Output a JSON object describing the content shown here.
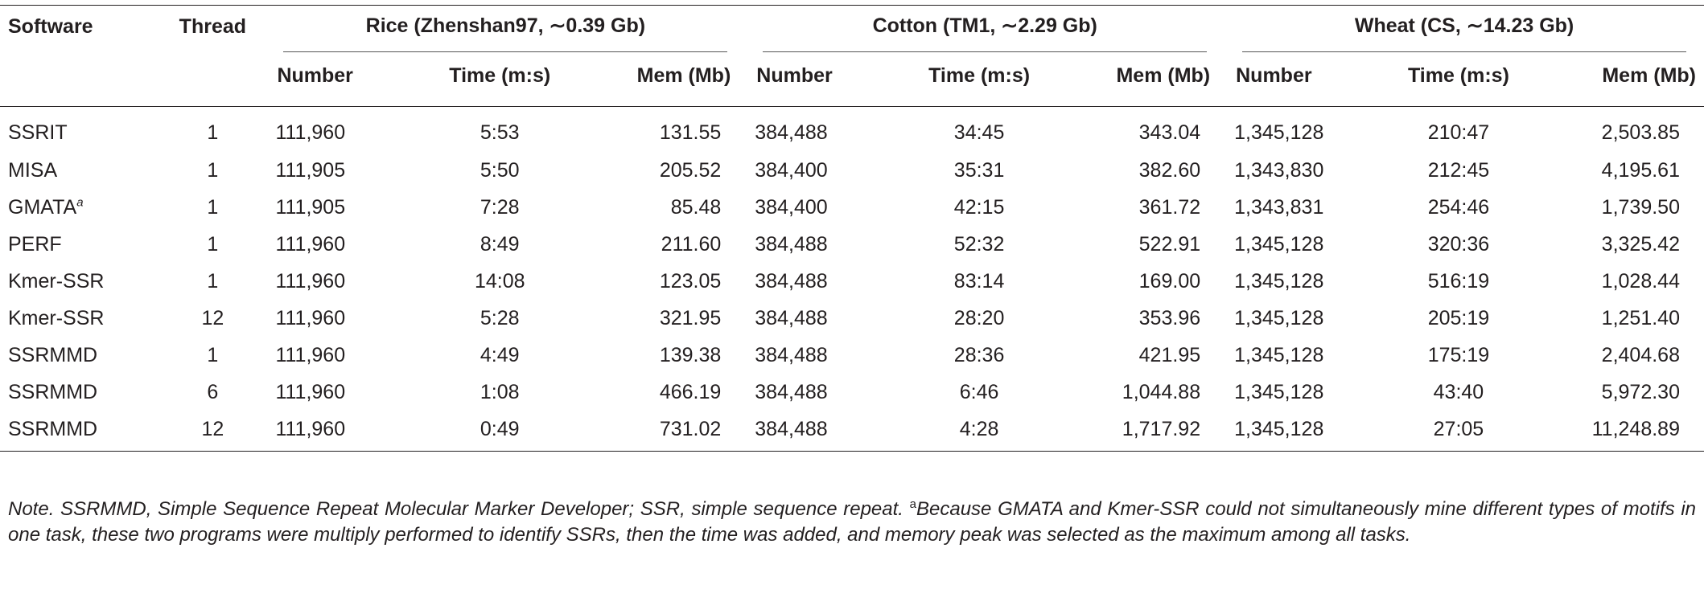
{
  "header": {
    "software": "Software",
    "thread": "Thread",
    "groups": [
      "Rice (Zhenshan97, ∼0.39 Gb)",
      "Cotton (TM1, ∼2.29 Gb)",
      "Wheat (CS, ∼14.23 Gb)"
    ],
    "sub": {
      "number": "Number",
      "time": "Time (m:s)",
      "mem": "Mem (Mb)"
    }
  },
  "rows": [
    {
      "software": "SSRIT",
      "sup": "",
      "thread": "1",
      "rice": [
        "111,960",
        "5:53",
        "131.55"
      ],
      "cotton": [
        "384,488",
        "34:45",
        "343.04"
      ],
      "wheat": [
        "1,345,128",
        "210:47",
        "2,503.85"
      ]
    },
    {
      "software": "MISA",
      "sup": "",
      "thread": "1",
      "rice": [
        "111,905",
        "5:50",
        "205.52"
      ],
      "cotton": [
        "384,400",
        "35:31",
        "382.60"
      ],
      "wheat": [
        "1,343,830",
        "212:45",
        "4,195.61"
      ]
    },
    {
      "software": "GMATA",
      "sup": "a",
      "thread": "1",
      "rice": [
        "111,905",
        "7:28",
        "85.48"
      ],
      "cotton": [
        "384,400",
        "42:15",
        "361.72"
      ],
      "wheat": [
        "1,343,831",
        "254:46",
        "1,739.50"
      ]
    },
    {
      "software": "PERF",
      "sup": "",
      "thread": "1",
      "rice": [
        "111,960",
        "8:49",
        "211.60"
      ],
      "cotton": [
        "384,488",
        "52:32",
        "522.91"
      ],
      "wheat": [
        "1,345,128",
        "320:36",
        "3,325.42"
      ]
    },
    {
      "software": "Kmer-SSR",
      "sup": "",
      "thread": "1",
      "rice": [
        "111,960",
        "14:08",
        "123.05"
      ],
      "cotton": [
        "384,488",
        "83:14",
        "169.00"
      ],
      "wheat": [
        "1,345,128",
        "516:19",
        "1,028.44"
      ]
    },
    {
      "software": "Kmer-SSR",
      "sup": "",
      "thread": "12",
      "rice": [
        "111,960",
        "5:28",
        "321.95"
      ],
      "cotton": [
        "384,488",
        "28:20",
        "353.96"
      ],
      "wheat": [
        "1,345,128",
        "205:19",
        "1,251.40"
      ]
    },
    {
      "software": "SSRMMD",
      "sup": "",
      "thread": "1",
      "rice": [
        "111,960",
        "4:49",
        "139.38"
      ],
      "cotton": [
        "384,488",
        "28:36",
        "421.95"
      ],
      "wheat": [
        "1,345,128",
        "175:19",
        "2,404.68"
      ]
    },
    {
      "software": "SSRMMD",
      "sup": "",
      "thread": "6",
      "rice": [
        "111,960",
        "1:08",
        "466.19"
      ],
      "cotton": [
        "384,488",
        "6:46",
        "1,044.88"
      ],
      "wheat": [
        "1,345,128",
        "43:40",
        "5,972.30"
      ]
    },
    {
      "software": "SSRMMD",
      "sup": "",
      "thread": "12",
      "rice": [
        "111,960",
        "0:49",
        "731.02"
      ],
      "cotton": [
        "384,488",
        "4:28",
        "1,717.92"
      ],
      "wheat": [
        "1,345,128",
        "27:05",
        "11,248.89"
      ]
    }
  ],
  "note": {
    "lead": "Note. SSRMMD, Simple Sequence Repeat Molecular Marker Developer; SSR, simple sequence repeat. ",
    "mark": "a",
    "text": "Because GMATA and Kmer-SSR could not simultaneously mine different types of motifs in one task, these two programs were multiply performed to identify SSRs, then the time was added, and memory peak was selected as the maximum among all tasks."
  }
}
